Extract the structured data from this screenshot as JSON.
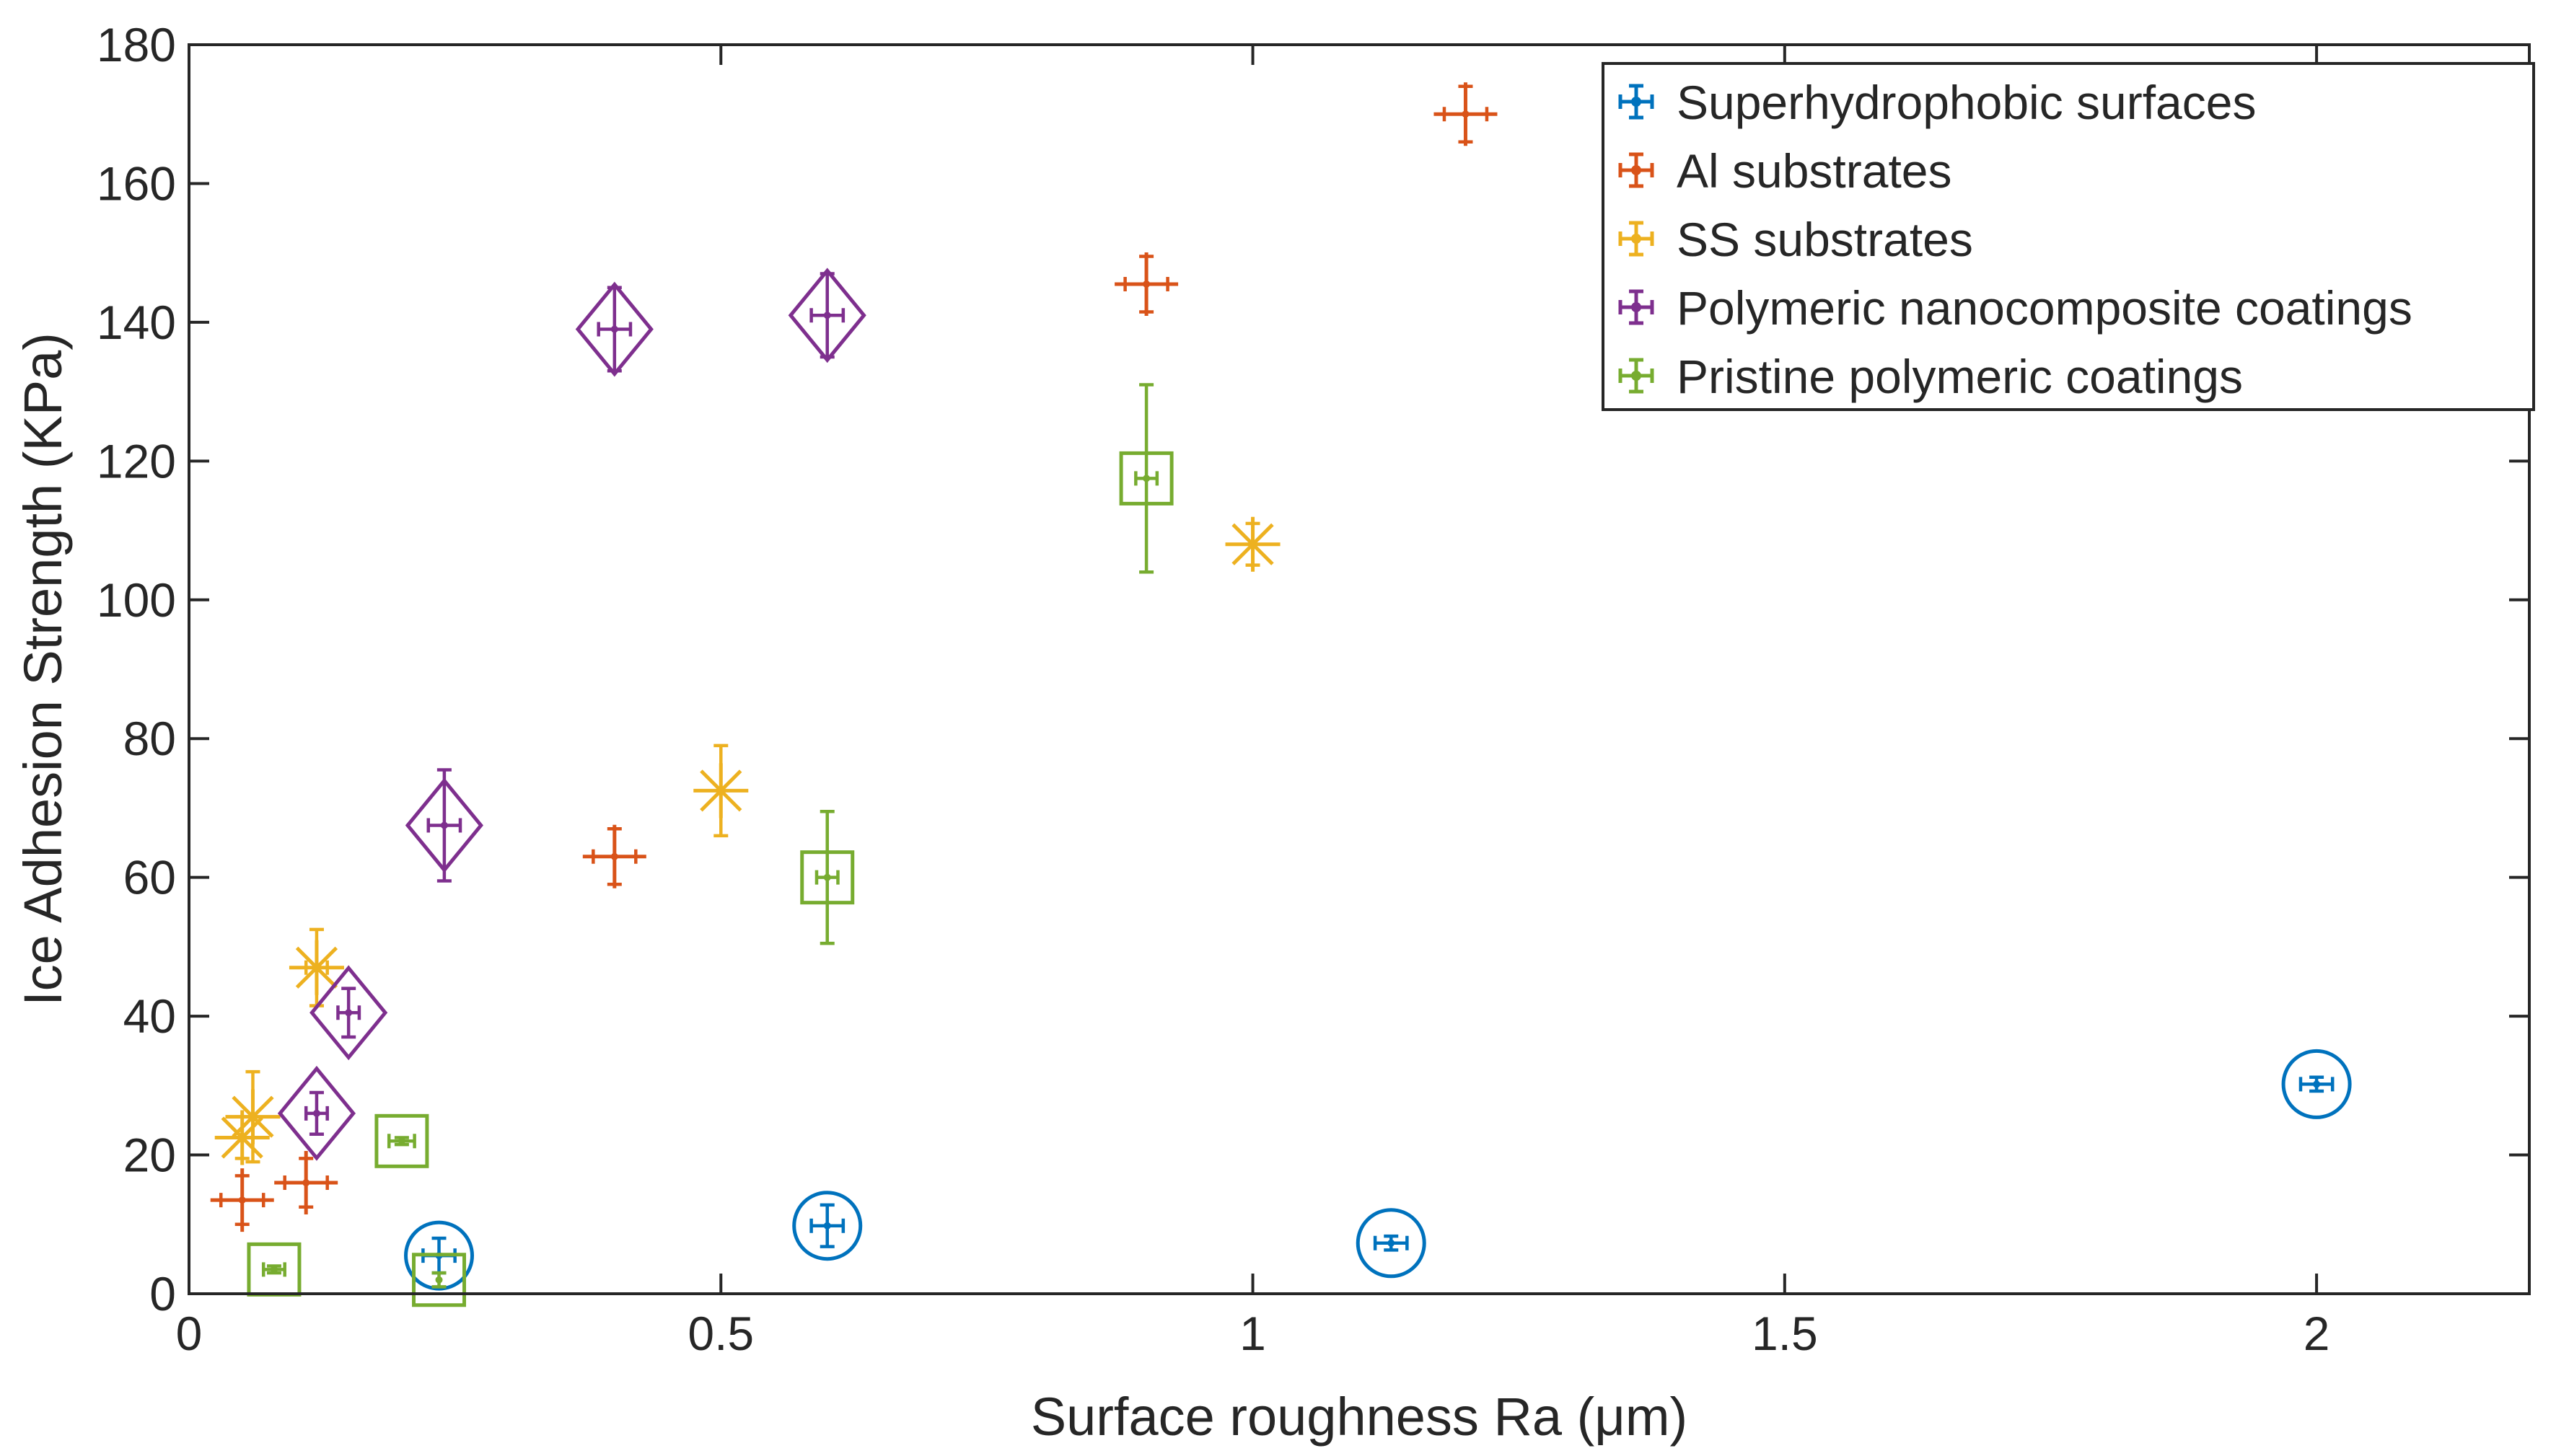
{
  "chart_data": {
    "type": "scatter",
    "xlabel": "Surface roughness Ra (μm)",
    "ylabel": "Ice Adhesion Strength (KPa)",
    "xlim": [
      0,
      2.2
    ],
    "ylim": [
      0,
      180
    ],
    "xticks": [
      0,
      0.5,
      1,
      1.5,
      2
    ],
    "yticks": [
      0,
      20,
      40,
      60,
      80,
      100,
      120,
      140,
      160,
      180
    ],
    "xtick_labels": [
      "0",
      "0.5",
      "1",
      "1.5",
      "2"
    ],
    "ytick_labels": [
      "0",
      "20",
      "40",
      "60",
      "80",
      "100",
      "120",
      "140",
      "160",
      "180"
    ],
    "grid": false,
    "legend_position": "top-right",
    "series": [
      {
        "name": "Superhydrophobic surfaces",
        "color": "#0072BD",
        "marker": "circle",
        "points": [
          {
            "x": 0.235,
            "y": 5.5,
            "xerr": 0.015,
            "yerr": 2.5
          },
          {
            "x": 0.6,
            "y": 9.8,
            "xerr": 0.015,
            "yerr": 3.0
          },
          {
            "x": 1.13,
            "y": 7.3,
            "xerr": 0.015,
            "yerr": 1.0
          },
          {
            "x": 2.0,
            "y": 30.2,
            "xerr": 0.015,
            "yerr": 1.0
          }
        ]
      },
      {
        "name": "Al substrates",
        "color": "#D95319",
        "marker": "plus",
        "points": [
          {
            "x": 0.05,
            "y": 13.5,
            "xerr": 0.02,
            "yerr": 3.5
          },
          {
            "x": 0.11,
            "y": 16.0,
            "xerr": 0.02,
            "yerr": 3.5
          },
          {
            "x": 0.4,
            "y": 63.0,
            "xerr": 0.02,
            "yerr": 4.0
          },
          {
            "x": 0.9,
            "y": 145.5,
            "xerr": 0.02,
            "yerr": 4.0
          },
          {
            "x": 1.2,
            "y": 170.0,
            "xerr": 0.02,
            "yerr": 4.0
          }
        ]
      },
      {
        "name": "SS substrates",
        "color": "#EDB120",
        "marker": "star",
        "points": [
          {
            "x": 0.05,
            "y": 22.5,
            "xerr": 0.0,
            "yerr": 3.0
          },
          {
            "x": 0.06,
            "y": 25.5,
            "xerr": 0.0,
            "yerr": 6.5
          },
          {
            "x": 0.12,
            "y": 47.0,
            "xerr": 0.01,
            "yerr": 5.5
          },
          {
            "x": 0.5,
            "y": 72.5,
            "xerr": 0.0,
            "yerr": 6.5
          },
          {
            "x": 1.0,
            "y": 108.0,
            "xerr": 0.0,
            "yerr": 3.0
          }
        ]
      },
      {
        "name": "Polymeric nanocomposite coatings",
        "color": "#7E2F8E",
        "marker": "diamond",
        "points": [
          {
            "x": 0.12,
            "y": 26.0,
            "xerr": 0.01,
            "yerr": 3.0
          },
          {
            "x": 0.15,
            "y": 40.5,
            "xerr": 0.01,
            "yerr": 3.5
          },
          {
            "x": 0.24,
            "y": 67.5,
            "xerr": 0.015,
            "yerr": 8.0
          },
          {
            "x": 0.4,
            "y": 139.0,
            "xerr": 0.015,
            "yerr": 6.0
          },
          {
            "x": 0.6,
            "y": 141.0,
            "xerr": 0.015,
            "yerr": 6.0
          }
        ]
      },
      {
        "name": "Pristine polymeric coatings",
        "color": "#77AC30",
        "marker": "square",
        "points": [
          {
            "x": 0.08,
            "y": 3.5,
            "xerr": 0.01,
            "yerr": 0.5
          },
          {
            "x": 0.2,
            "y": 22.0,
            "xerr": 0.012,
            "yerr": 0.5
          },
          {
            "x": 0.235,
            "y": 2.0,
            "xerr": 0.0,
            "yerr": 1.0
          },
          {
            "x": 0.6,
            "y": 60.0,
            "xerr": 0.01,
            "yerr": 9.5
          },
          {
            "x": 0.9,
            "y": 117.5,
            "xerr": 0.01,
            "yerr": 13.5
          }
        ]
      }
    ]
  }
}
